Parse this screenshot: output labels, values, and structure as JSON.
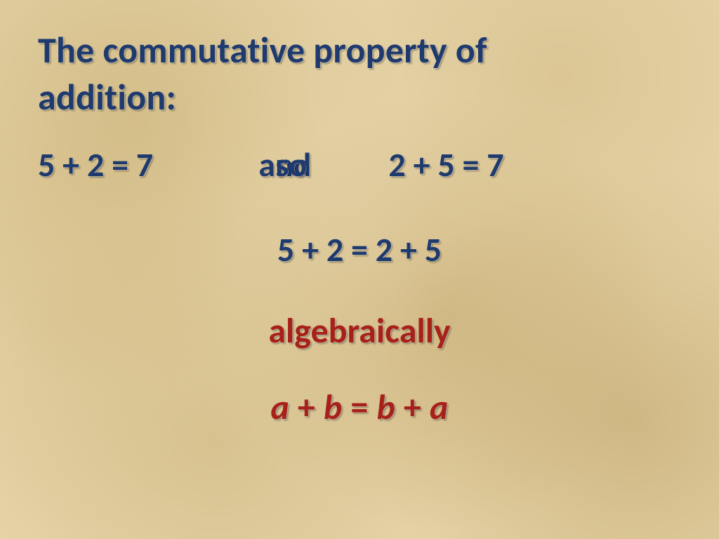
{
  "colors": {
    "navy": "#1e3a6e",
    "red": "#a8201a",
    "background_base": "#e6d4a8"
  },
  "typography": {
    "font_family": "Calibri",
    "heading_size_pt": 40,
    "body_size_pt": 36,
    "weight": 700
  },
  "heading": {
    "line1": "The commutative property of",
    "line2": "addition:"
  },
  "examples": {
    "left": "5 + 2 = 7",
    "connector_back": "and",
    "connector_front": "so",
    "right": "2 + 5 = 7"
  },
  "combined": "5 + 2 = 2 + 5",
  "algebraic_label": "algebraically",
  "formula": {
    "a": "a",
    "plus1": " + ",
    "b": "b",
    "eq": " = ",
    "b2": "b",
    "plus2": " + ",
    "a2": "a"
  }
}
